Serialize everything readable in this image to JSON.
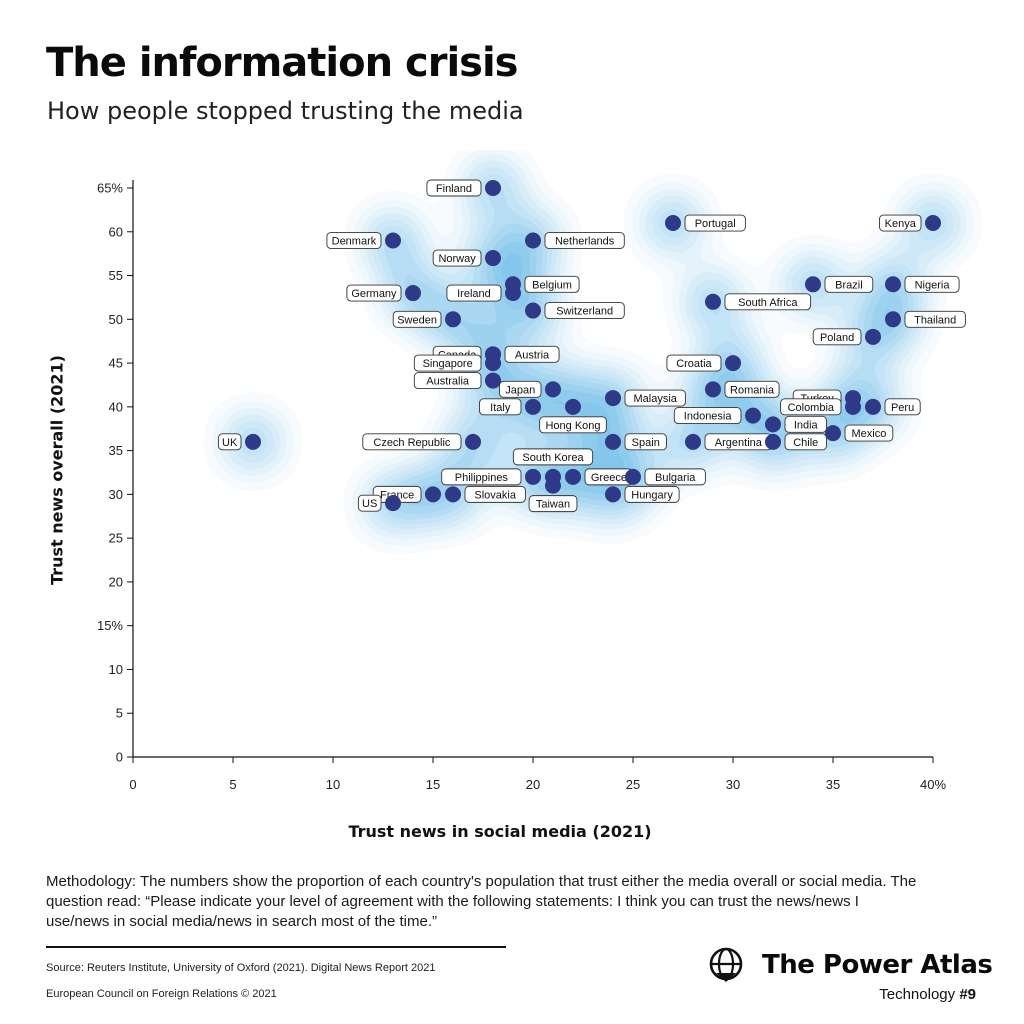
{
  "title": "The information crisis",
  "subtitle": "How people stopped trusting the media",
  "methodology": "Methodology: The numbers show the proportion of each country's population that trust either the media overall or social media. The question read: “Please indicate your level of agreement with the following statements: I think you can trust the news/news I use/news in social media/news in search most of the time.”",
  "source": "Source: Reuters Institute, University of Oxford (2021). Digital News Report 2021",
  "copyright": "European Council on Foreign Relations © 2021",
  "brand": {
    "name": "The Power Atlas",
    "series_prefix": "Technology ",
    "series_number": "#9",
    "icon": "globe-icon"
  },
  "colors": {
    "point": "#2e3a87",
    "density": "#2f86d2",
    "axis": "#111111"
  },
  "chart_data": {
    "type": "scatter",
    "xlabel": "Trust news in social media (2021)",
    "ylabel": "Trust news overall (2021)",
    "xlim": [
      0,
      40
    ],
    "ylim": [
      0,
      65
    ],
    "x_ticks": [
      {
        "v": 0,
        "t": "0"
      },
      {
        "v": 5,
        "t": "5"
      },
      {
        "v": 10,
        "t": "10"
      },
      {
        "v": 15,
        "t": "15"
      },
      {
        "v": 20,
        "t": "20"
      },
      {
        "v": 25,
        "t": "25"
      },
      {
        "v": 30,
        "t": "30"
      },
      {
        "v": 35,
        "t": "35"
      },
      {
        "v": 40,
        "t": "40%"
      }
    ],
    "y_ticks": [
      {
        "v": 0,
        "t": "0"
      },
      {
        "v": 5,
        "t": "5"
      },
      {
        "v": 10,
        "t": "10"
      },
      {
        "v": 15,
        "t": "15%"
      },
      {
        "v": 20,
        "t": "20"
      },
      {
        "v": 25,
        "t": "25"
      },
      {
        "v": 30,
        "t": "30"
      },
      {
        "v": 35,
        "t": "35"
      },
      {
        "v": 40,
        "t": "40"
      },
      {
        "v": 45,
        "t": "45"
      },
      {
        "v": 50,
        "t": "50"
      },
      {
        "v": 55,
        "t": "55"
      },
      {
        "v": 60,
        "t": "60"
      },
      {
        "v": 65,
        "t": "65%"
      }
    ],
    "density_shading": true,
    "points": [
      {
        "label": "Finland",
        "x": 18,
        "y": 65,
        "side": "left"
      },
      {
        "label": "Denmark",
        "x": 13,
        "y": 59,
        "side": "left"
      },
      {
        "label": "Netherlands",
        "x": 20,
        "y": 59,
        "side": "right"
      },
      {
        "label": "Portugal",
        "x": 27,
        "y": 61,
        "side": "right"
      },
      {
        "label": "Kenya",
        "x": 40,
        "y": 61,
        "side": "left"
      },
      {
        "label": "Norway",
        "x": 18,
        "y": 57,
        "side": "left"
      },
      {
        "label": "Belgium",
        "x": 19,
        "y": 54,
        "side": "right"
      },
      {
        "label": "Ireland",
        "x": 19,
        "y": 53,
        "side": "left"
      },
      {
        "label": "Germany",
        "x": 14,
        "y": 53,
        "side": "left"
      },
      {
        "label": "Brazil",
        "x": 34,
        "y": 54,
        "side": "right"
      },
      {
        "label": "Nigeria",
        "x": 38,
        "y": 54,
        "side": "right"
      },
      {
        "label": "South Africa",
        "x": 29,
        "y": 52,
        "side": "right"
      },
      {
        "label": "Switzerland",
        "x": 20,
        "y": 51,
        "side": "right"
      },
      {
        "label": "Sweden",
        "x": 16,
        "y": 50,
        "side": "left"
      },
      {
        "label": "Thailand",
        "x": 38,
        "y": 50,
        "side": "right"
      },
      {
        "label": "Poland",
        "x": 37,
        "y": 48,
        "side": "left"
      },
      {
        "label": "Canada",
        "x": 18,
        "y": 46,
        "side": "left"
      },
      {
        "label": "Austria",
        "x": 18,
        "y": 46,
        "side": "right"
      },
      {
        "label": "Singapore",
        "x": 18,
        "y": 45,
        "side": "left"
      },
      {
        "label": "Croatia",
        "x": 30,
        "y": 45,
        "side": "left"
      },
      {
        "label": "Australia",
        "x": 18,
        "y": 43,
        "side": "left"
      },
      {
        "label": "Japan",
        "x": 21,
        "y": 42,
        "side": "left"
      },
      {
        "label": "Romania",
        "x": 29,
        "y": 42,
        "side": "right"
      },
      {
        "label": "Turkey",
        "x": 36,
        "y": 41,
        "side": "left"
      },
      {
        "label": "Malaysia",
        "x": 24,
        "y": 41,
        "side": "right"
      },
      {
        "label": "Italy",
        "x": 20,
        "y": 40,
        "side": "left"
      },
      {
        "label": "Hong Kong",
        "x": 22,
        "y": 40,
        "side": "below"
      },
      {
        "label": "Colombia",
        "x": 36,
        "y": 40,
        "side": "left"
      },
      {
        "label": "Peru",
        "x": 37,
        "y": 40,
        "side": "right"
      },
      {
        "label": "Indonesia",
        "x": 31,
        "y": 39,
        "side": "left"
      },
      {
        "label": "India",
        "x": 32,
        "y": 38,
        "side": "right"
      },
      {
        "label": "Mexico",
        "x": 35,
        "y": 37,
        "side": "right"
      },
      {
        "label": "UK",
        "x": 6,
        "y": 36,
        "side": "left"
      },
      {
        "label": "Czech Republic",
        "x": 17,
        "y": 36,
        "side": "left"
      },
      {
        "label": "Spain",
        "x": 24,
        "y": 36,
        "side": "right"
      },
      {
        "label": "Argentina",
        "x": 28,
        "y": 36,
        "side": "right"
      },
      {
        "label": "Chile",
        "x": 32,
        "y": 36,
        "side": "right"
      },
      {
        "label": "South Korea",
        "x": 21,
        "y": 32,
        "side": "above"
      },
      {
        "label": "Philippines",
        "x": 20,
        "y": 32,
        "side": "left"
      },
      {
        "label": "Greece",
        "x": 22,
        "y": 32,
        "side": "right"
      },
      {
        "label": "Bulgaria",
        "x": 25,
        "y": 32,
        "side": "right"
      },
      {
        "label": "Taiwan",
        "x": 21,
        "y": 31,
        "side": "below"
      },
      {
        "label": "France",
        "x": 15,
        "y": 30,
        "side": "left"
      },
      {
        "label": "Slovakia",
        "x": 16,
        "y": 30,
        "side": "right"
      },
      {
        "label": "Hungary",
        "x": 24,
        "y": 30,
        "side": "right"
      },
      {
        "label": "US",
        "x": 13,
        "y": 29,
        "side": "left"
      }
    ]
  }
}
